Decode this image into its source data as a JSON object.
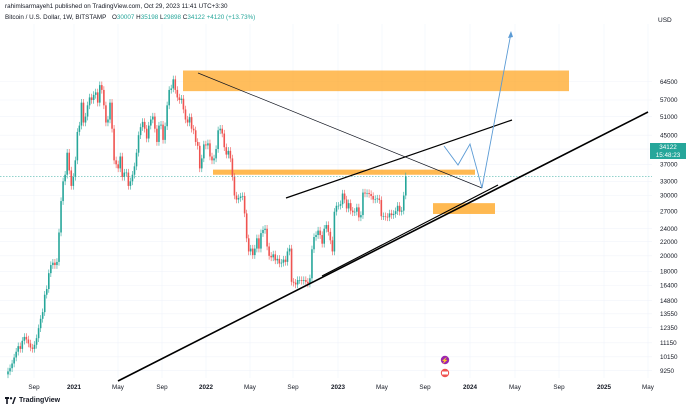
{
  "header": {
    "publish_line": "rahimlsarmayeh1 published on TradingView.com, Oct 29, 2023 11:41 UTC+3:30",
    "symbol_line": "Bitcoin / U.S. Dollar, 1W, BITSTAMP",
    "ohlc": {
      "o_label": "O",
      "o_value": "30007",
      "h_label": "H",
      "h_value": "35198",
      "l_label": "L",
      "l_value": "29898",
      "c_label": "C",
      "c_value": "34122",
      "change": "+4120 (+13.73%)"
    }
  },
  "axis": {
    "currency": "USD",
    "price_ticks": [
      "64500",
      "57000",
      "51000",
      "45000",
      "41000",
      "37000",
      "33000",
      "30000",
      "27000",
      "24000",
      "22000",
      "20000",
      "18000",
      "16400",
      "14800",
      "13550",
      "12350",
      "11150",
      "10150",
      "9250"
    ],
    "time_ticks": [
      "Sep",
      "2021",
      "May",
      "Sep",
      "2022",
      "May",
      "Sep",
      "2023",
      "May",
      "Sep",
      "2024",
      "May",
      "Sep",
      "2025",
      "May"
    ]
  },
  "current_price": {
    "value": "34122",
    "countdown": "15:48:23"
  },
  "brand": "TradingView",
  "colors": {
    "up": "#26a69a",
    "down": "#ef5350",
    "zone": "#ffa726",
    "projection": "#5b9bd5",
    "trendline": "#000000",
    "grid": "#f0f3fa"
  },
  "chart_data": {
    "type": "candlestick",
    "symbol": "Bitcoin / U.S. Dollar",
    "interval": "1W",
    "y_scale": "log",
    "ylim": [
      8800,
      95000
    ],
    "x_range": [
      "2020-07",
      "2025-05"
    ],
    "closes": [
      9200,
      9400,
      9700,
      10100,
      10500,
      10900,
      10700,
      11300,
      11600,
      11400,
      11100,
      10800,
      10700,
      11000,
      11500,
      12300,
      13100,
      13700,
      15400,
      16000,
      17800,
      18800,
      19100,
      18800,
      19200,
      23400,
      28900,
      33000,
      34500,
      40000,
      35500,
      32000,
      34000,
      38000,
      46000,
      48000,
      56000,
      49000,
      51000,
      55000,
      58000,
      57000,
      59000,
      60000,
      56000,
      63000,
      61000,
      55000,
      49000,
      50000,
      56000,
      47000,
      38000,
      37000,
      36000,
      39000,
      34000,
      35000,
      35000,
      32000,
      33000,
      34500,
      36500,
      40000,
      45000,
      47500,
      49200,
      47000,
      44000,
      48000,
      50000,
      51000,
      47000,
      43000,
      48000,
      48300,
      43600,
      47800,
      55000,
      61000,
      61600,
      65500,
      61000,
      58000,
      57000,
      57500,
      53500,
      50000,
      49000,
      50800,
      47000,
      46500,
      43000,
      41900,
      36000,
      38500,
      42300,
      42000,
      42600,
      39000,
      38000,
      38500,
      41000,
      46500,
      47000,
      45500,
      41500,
      39500,
      40500,
      38500,
      34000,
      30000,
      29200,
      29500,
      29800,
      29900,
      26600,
      22500,
      20600,
      21000,
      20100,
      21000,
      22500,
      21000,
      23300,
      23800,
      24000,
      21300,
      20000,
      19800,
      20200,
      19400,
      19600,
      19000,
      19100,
      19500,
      19200,
      20600,
      21000,
      16800,
      16700,
      16500,
      17000,
      17000,
      16900,
      17000,
      16800,
      16600,
      17200,
      20900,
      22700,
      23000,
      23700,
      23000,
      21700,
      24000,
      24600,
      23500,
      22200,
      20600,
      26900,
      28000,
      28000,
      28300,
      30400,
      29200,
      27500,
      28500,
      27100,
      26800,
      26900,
      27700,
      25900,
      26300,
      30600,
      30400,
      30500,
      30300,
      29900,
      29200,
      29300,
      29400,
      29100,
      26100,
      26100,
      26000,
      25900,
      26600,
      26300,
      26500,
      27000,
      28000,
      26900,
      27100,
      30000,
      34122
    ],
    "annotations": {
      "resistance_zones": [
        [
          60500,
          69500
        ],
        [
          34500,
          35700
        ]
      ],
      "support_zone": [
        26500,
        28500
      ],
      "upper_trendline": [
        "2021-11 ~ 57000",
        "2023-12 ~ 27000"
      ],
      "channel_top": [
        "2022-08 ~ 25500",
        "2024-02 ~ 39000"
      ],
      "long_term_support": [
        "2020-12 ~ 8800",
        "2025-06 ~ 45000"
      ],
      "projection_path": [
        34122,
        29500,
        33500,
        27000,
        69000
      ]
    }
  }
}
